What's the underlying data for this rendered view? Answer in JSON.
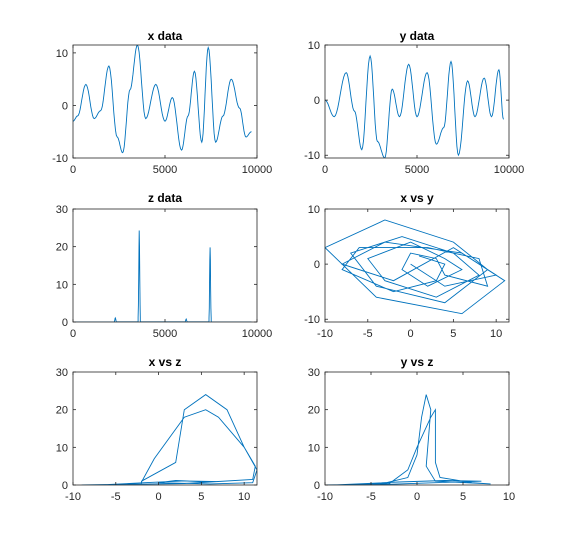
{
  "figure": {
    "background": "#ffffff",
    "line_color": "#0072bd"
  },
  "chart_data": [
    {
      "type": "line",
      "title": "x data",
      "xlabel": "",
      "ylabel": "",
      "xlim": [
        0,
        10000
      ],
      "ylim": [
        -10,
        11.5
      ],
      "xticks": [
        0,
        5000,
        10000
      ],
      "yticks": [
        -10,
        0,
        10
      ],
      "grid": false,
      "legend": "none",
      "series": [
        {
          "kind": "osc",
          "x_end": 9700,
          "tail": -5,
          "extrema": [
            [
              0,
              -3
            ],
            [
              250,
              -2
            ],
            [
              700,
              4
            ],
            [
              1150,
              -2.5
            ],
            [
              1500,
              -1
            ],
            [
              1950,
              7.5
            ],
            [
              2400,
              -6
            ],
            [
              2700,
              -9
            ],
            [
              3100,
              3
            ],
            [
              3500,
              11.5
            ],
            [
              3950,
              -2.5
            ],
            [
              4500,
              4
            ],
            [
              5000,
              -3
            ],
            [
              5400,
              1.5
            ],
            [
              5900,
              -8.5
            ],
            [
              6250,
              -2
            ],
            [
              6600,
              6.5
            ],
            [
              7000,
              -7
            ],
            [
              7350,
              11
            ],
            [
              7750,
              -7
            ],
            [
              8150,
              -2
            ],
            [
              8600,
              5
            ],
            [
              9050,
              -0.5
            ],
            [
              9400,
              -6
            ]
          ]
        }
      ]
    },
    {
      "type": "line",
      "title": "y data",
      "xlabel": "",
      "ylabel": "",
      "xlim": [
        0,
        10000
      ],
      "ylim": [
        -10.5,
        10
      ],
      "xticks": [
        0,
        5000,
        10000
      ],
      "yticks": [
        -10,
        0,
        10
      ],
      "grid": false,
      "legend": "none",
      "series": [
        {
          "kind": "osc",
          "x_end": 9700,
          "tail": -3.5,
          "extrema": [
            [
              0,
              0
            ],
            [
              500,
              -3
            ],
            [
              1150,
              5
            ],
            [
              1600,
              -2
            ],
            [
              2000,
              -9
            ],
            [
              2450,
              8
            ],
            [
              2850,
              -7.5
            ],
            [
              3250,
              -10.5
            ],
            [
              3650,
              2
            ],
            [
              4050,
              -3
            ],
            [
              4550,
              6.5
            ],
            [
              5000,
              -3
            ],
            [
              5550,
              5
            ],
            [
              6050,
              -8
            ],
            [
              6450,
              -5
            ],
            [
              6850,
              7
            ],
            [
              7250,
              -10
            ],
            [
              7750,
              3.5
            ],
            [
              8150,
              -3
            ],
            [
              8650,
              4
            ],
            [
              9050,
              -3
            ],
            [
              9450,
              5.5
            ]
          ]
        }
      ]
    },
    {
      "type": "line",
      "title": "z data",
      "xlabel": "",
      "ylabel": "",
      "xlim": [
        0,
        10000
      ],
      "ylim": [
        0,
        30
      ],
      "xticks": [
        0,
        5000,
        10000
      ],
      "yticks": [
        0,
        10,
        20,
        30
      ],
      "grid": false,
      "legend": "none",
      "series": [
        {
          "kind": "spikes",
          "x_end": 9700,
          "peaks": [
            [
              2300,
              1.1
            ],
            [
              3600,
              24.3
            ],
            [
              6150,
              0.8
            ],
            [
              7450,
              19.8
            ]
          ]
        }
      ]
    },
    {
      "type": "line",
      "title": "x vs y",
      "xlabel": "",
      "ylabel": "",
      "xlim": [
        -10,
        11.5
      ],
      "ylim": [
        -10.5,
        10
      ],
      "xticks": [
        -10,
        -5,
        0,
        5,
        10
      ],
      "yticks": [
        -10,
        0,
        10
      ],
      "grid": false,
      "legend": "none",
      "series": [
        {
          "kind": "xy",
          "points": [
            [
              0,
              0
            ],
            [
              4,
              -4
            ],
            [
              10,
              -2
            ],
            [
              5,
              3
            ],
            [
              -2,
              -3
            ],
            [
              -8,
              0
            ],
            [
              -3,
              4
            ],
            [
              6,
              2
            ],
            [
              11,
              -3
            ],
            [
              6,
              -9
            ],
            [
              -4,
              -6
            ],
            [
              -10,
              3
            ],
            [
              -3,
              8
            ],
            [
              5,
              4
            ],
            [
              9,
              -1
            ],
            [
              4,
              -7
            ],
            [
              -4,
              -4
            ],
            [
              -7,
              2
            ],
            [
              -1,
              5
            ],
            [
              5,
              2
            ],
            [
              8,
              -2
            ],
            [
              3,
              -6
            ],
            [
              -3,
              -3
            ],
            [
              -5,
              1
            ],
            [
              0,
              4
            ],
            [
              4,
              1
            ],
            [
              6,
              -1
            ],
            [
              2,
              -4
            ],
            [
              -1,
              -1
            ],
            [
              0,
              2
            ],
            [
              3,
              1
            ],
            [
              4,
              -2
            ],
            [
              9,
              -4
            ],
            [
              8,
              1
            ],
            [
              2,
              3
            ],
            [
              -6,
              3
            ],
            [
              -8,
              -1
            ],
            [
              -2,
              -5
            ],
            [
              3,
              -3
            ],
            [
              4,
              0
            ],
            [
              1,
              1.5
            ]
          ]
        }
      ]
    },
    {
      "type": "line",
      "title": "x vs z",
      "xlabel": "",
      "ylabel": "",
      "xlim": [
        -10,
        11.5
      ],
      "ylim": [
        0,
        30
      ],
      "xticks": [
        -10,
        -5,
        0,
        5,
        10
      ],
      "yticks": [
        0,
        10,
        20,
        30
      ],
      "grid": false,
      "legend": "none",
      "series": [
        {
          "kind": "xy",
          "points": [
            [
              -9,
              0
            ],
            [
              -2,
              0.3
            ],
            [
              -2,
              1
            ],
            [
              2,
              6
            ],
            [
              3,
              20
            ],
            [
              5.5,
              24
            ],
            [
              8,
              20
            ],
            [
              10,
              10
            ],
            [
              11.5,
              4
            ],
            [
              11,
              0.6
            ],
            [
              6,
              0.3
            ],
            [
              0,
              0.6
            ],
            [
              2,
              1.2
            ],
            [
              6,
              0.8
            ],
            [
              11,
              1.5
            ],
            [
              11.3,
              5
            ],
            [
              10,
              10
            ],
            [
              7,
              18
            ],
            [
              5.5,
              20
            ],
            [
              3,
              18
            ],
            [
              -0.5,
              7
            ],
            [
              -2,
              0.8
            ],
            [
              -2,
              0.2
            ],
            [
              -9,
              0
            ],
            [
              3,
              0.4
            ],
            [
              7,
              0.9
            ],
            [
              3,
              1.1
            ],
            [
              -1,
              0.7
            ],
            [
              -6,
              0.1
            ]
          ]
        }
      ]
    },
    {
      "type": "line",
      "title": "y vs z",
      "xlabel": "",
      "ylabel": "",
      "xlim": [
        -10,
        10
      ],
      "ylim": [
        0,
        30
      ],
      "xticks": [
        -10,
        -5,
        0,
        5,
        10
      ],
      "yticks": [
        0,
        10,
        20,
        30
      ],
      "grid": false,
      "legend": "none",
      "series": [
        {
          "kind": "xy",
          "points": [
            [
              -10,
              0
            ],
            [
              -4,
              0.2
            ],
            [
              -1,
              2
            ],
            [
              0,
              8
            ],
            [
              0.5,
              18
            ],
            [
              1,
              24
            ],
            [
              1.5,
              20
            ],
            [
              1,
              5
            ],
            [
              2,
              1
            ],
            [
              8,
              0.3
            ],
            [
              6,
              0.6
            ],
            [
              2.5,
              2
            ],
            [
              2,
              6
            ],
            [
              2,
              20
            ],
            [
              1.5,
              18
            ],
            [
              0,
              10
            ],
            [
              -1,
              4
            ],
            [
              -3,
              0.4
            ],
            [
              -9,
              0
            ],
            [
              -2,
              0.8
            ],
            [
              3,
              1.2
            ],
            [
              7,
              1
            ],
            [
              2,
              0.6
            ],
            [
              -4,
              0.1
            ]
          ]
        }
      ]
    }
  ]
}
